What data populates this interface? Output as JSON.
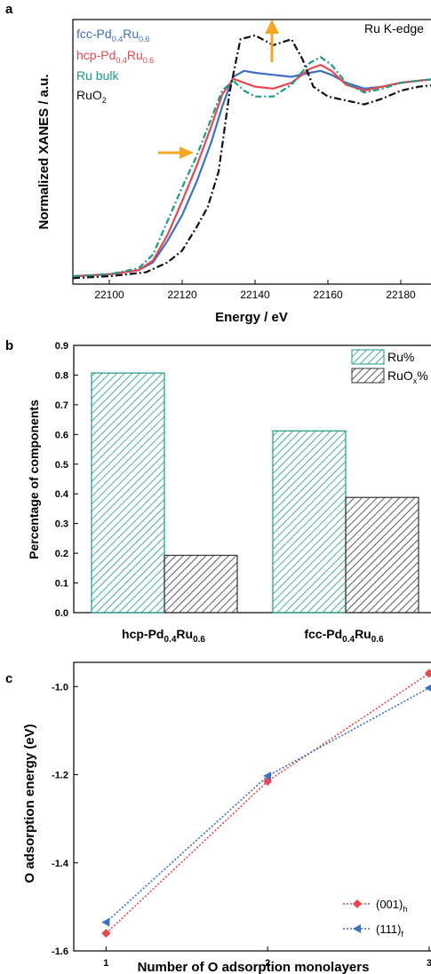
{
  "panel_a": {
    "label": "a",
    "edge_label": "Ru K-edge",
    "xlabel": "Energy / eV",
    "ylabel": "Normalized XANES / a.u.",
    "legend": [
      {
        "base": "fcc-Pd",
        "s1": "0.4",
        "mid": "Ru",
        "s2": "0.6",
        "color": "#3f6fc0"
      },
      {
        "base": "hcp-Pd",
        "s1": "0.4",
        "mid": "Ru",
        "s2": "0.6",
        "color": "#e8474f"
      },
      {
        "base": "Ru bulk",
        "s1": "",
        "mid": "",
        "s2": "",
        "color": "#1a9a8a"
      },
      {
        "base": "RuO",
        "s1": "2",
        "mid": "",
        "s2": "",
        "color": "#111111"
      }
    ]
  },
  "panel_b": {
    "label": "b",
    "ylabel": "Percentage of components",
    "legend_ru": "Ru%",
    "legend_ruox_base": "RuO",
    "legend_ruox_sub": "x",
    "legend_ruox_end": "%",
    "cat1_base": "hcp-Pd",
    "cat1_s1": "0.4",
    "cat1_mid": "Ru",
    "cat1_s2": "0.6",
    "cat2_base": "fcc-Pd",
    "cat2_s1": "0.4",
    "cat2_mid": "Ru",
    "cat2_s2": "0.6"
  },
  "panel_c": {
    "label": "c",
    "ylabel": "O adsorption energy (eV)",
    "xlabel": "Number of O adsorption monolayers",
    "legend1_base": "(001)",
    "legend1_sub": "h",
    "legend2_base": "(111)",
    "legend2_sub": "f"
  },
  "chart_data": [
    {
      "type": "line",
      "xlabel": "Energy / eV",
      "ylabel": "Normalized XANES / a.u.",
      "xlim": [
        22090,
        22190
      ],
      "xticks": [
        22100,
        22120,
        22140,
        22160,
        22180
      ],
      "annotations": [
        "Ru K-edge"
      ],
      "series": [
        {
          "name": "fcc-Pd0.4Ru0.6",
          "color": "#3f6fc0",
          "x": [
            22090,
            22100,
            22108,
            22112,
            22116,
            22120,
            22124,
            22128,
            22131,
            22134,
            22137,
            22140,
            22145,
            22150,
            22155,
            22158,
            22161,
            22165,
            22170,
            22175,
            22180,
            22185,
            22190
          ],
          "y": [
            0.02,
            0.03,
            0.05,
            0.09,
            0.2,
            0.33,
            0.5,
            0.7,
            0.88,
            1.03,
            1.06,
            1.05,
            1.04,
            1.03,
            1.05,
            1.06,
            1.04,
            1.0,
            0.97,
            0.98,
            1.0,
            1.01,
            1.02
          ]
        },
        {
          "name": "hcp-Pd0.4Ru0.6",
          "color": "#e8474f",
          "x": [
            22090,
            22100,
            22108,
            22112,
            22116,
            22120,
            22124,
            22128,
            22131,
            22134,
            22137,
            22140,
            22145,
            22150,
            22155,
            22158,
            22161,
            22165,
            22170,
            22175,
            22180,
            22185,
            22190
          ],
          "y": [
            0.02,
            0.03,
            0.05,
            0.1,
            0.23,
            0.4,
            0.58,
            0.78,
            0.94,
            1.02,
            1.0,
            0.98,
            0.97,
            1.0,
            1.07,
            1.09,
            1.06,
            0.99,
            0.96,
            0.98,
            1.0,
            1.01,
            1.02
          ]
        },
        {
          "name": "Ru bulk",
          "color": "#1a9a8a",
          "x": [
            22090,
            22100,
            22108,
            22112,
            22116,
            22120,
            22124,
            22128,
            22131,
            22134,
            22137,
            22140,
            22145,
            22150,
            22155,
            22158,
            22161,
            22165,
            22170,
            22175,
            22180,
            22185,
            22190
          ],
          "y": [
            0.02,
            0.03,
            0.06,
            0.13,
            0.3,
            0.47,
            0.63,
            0.82,
            0.96,
            1.01,
            0.96,
            0.93,
            0.93,
            0.99,
            1.1,
            1.13,
            1.09,
            1.0,
            0.95,
            0.97,
            1.0,
            1.01,
            1.02
          ]
        },
        {
          "name": "RuO2",
          "color": "#111111",
          "x": [
            22090,
            22100,
            22110,
            22116,
            22120,
            22124,
            22127,
            22130,
            22133,
            22136,
            22140,
            22145,
            22150,
            22153,
            22156,
            22160,
            22165,
            22170,
            22175,
            22180,
            22185,
            22190
          ],
          "y": [
            0.01,
            0.02,
            0.04,
            0.09,
            0.15,
            0.27,
            0.37,
            0.55,
            0.95,
            1.22,
            1.24,
            1.19,
            1.22,
            1.12,
            0.98,
            0.93,
            0.91,
            0.89,
            0.92,
            0.96,
            0.98,
            0.99
          ]
        }
      ]
    },
    {
      "type": "bar",
      "ylabel": "Percentage of components",
      "categories": [
        "hcp-Pd0.4Ru0.6",
        "fcc-Pd0.4Ru0.6"
      ],
      "ylim": [
        0,
        0.9
      ],
      "yticks": [
        "0.0",
        "0.1",
        "0.2",
        "0.3",
        "0.4",
        "0.5",
        "0.6",
        "0.7",
        "0.8",
        "0.9"
      ],
      "series": [
        {
          "name": "Ru%",
          "values": [
            0.807,
            0.612
          ],
          "color": "#1a9a8a"
        },
        {
          "name": "RuOx%",
          "values": [
            0.193,
            0.388
          ],
          "color": "#333333"
        }
      ]
    },
    {
      "type": "line",
      "xlabel": "Number of O adsorption monolayers",
      "ylabel": "O adsorption energy (eV)",
      "x": [
        1,
        2,
        3
      ],
      "xlim": [
        0.8,
        3.05
      ],
      "ylim": [
        -1.6,
        -0.95
      ],
      "yticks": [
        "-1.6",
        "-1.4",
        "-1.2",
        "-1.0"
      ],
      "series": [
        {
          "name": "(001)h",
          "values": [
            -1.56,
            -1.215,
            -0.97
          ],
          "color": "#e8474f",
          "marker": "diamond"
        },
        {
          "name": "(111)f",
          "values": [
            -1.535,
            -1.203,
            -1.003
          ],
          "color": "#3f6fc0",
          "marker": "triangle-left"
        }
      ]
    }
  ]
}
